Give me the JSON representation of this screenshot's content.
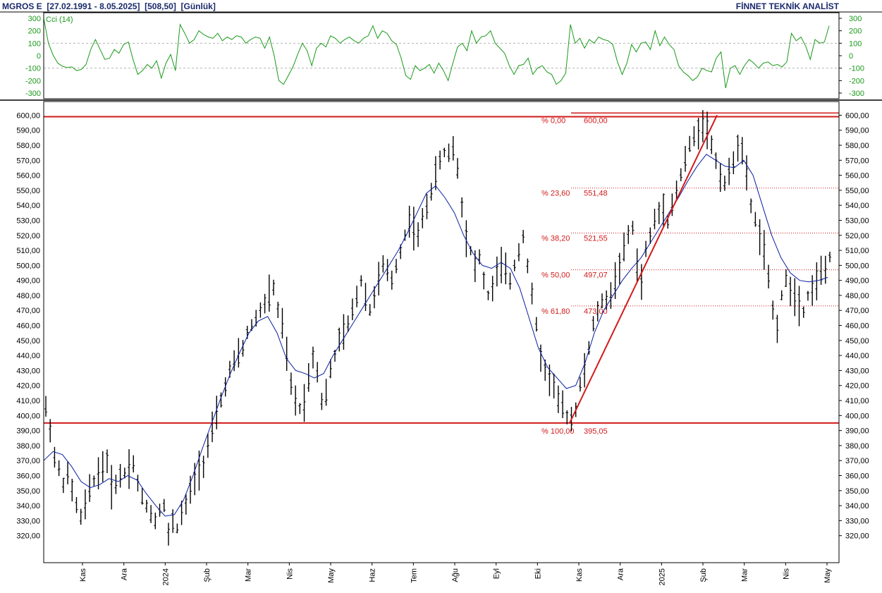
{
  "header": {
    "symbol": "MGROS E",
    "range": "[27.02.1991 - 8.05.2025]",
    "last": "[508,50]",
    "period": "[Günlük]",
    "right_title": "FİNNET TEKNİK ANALİST"
  },
  "colors": {
    "bars": "#000000",
    "moving_average": "#0a1fa0",
    "cci": "#1a9a1a",
    "fib_levels": "#d21a1a",
    "header_text": "#1a2a6c"
  },
  "chart_data": [
    {
      "type": "line",
      "title": "Cci (14)",
      "ylim": [
        -300,
        300
      ],
      "yticks": [
        "300",
        "200",
        "100",
        "0",
        "-100",
        "-200",
        "-300"
      ],
      "grid": true,
      "series": [
        {
          "name": "Cci (14)",
          "values": [
            300,
            100,
            5,
            -60,
            -85,
            -95,
            -90,
            -120,
            -110,
            -70,
            50,
            130,
            50,
            -30,
            -20,
            50,
            20,
            90,
            110,
            -30,
            -150,
            -120,
            -70,
            -100,
            -40,
            -180,
            -60,
            10,
            -120,
            250,
            180,
            100,
            130,
            200,
            170,
            150,
            140,
            180,
            120,
            150,
            130,
            160,
            150,
            100,
            130,
            150,
            140,
            60,
            150,
            0,
            -200,
            -230,
            -160,
            -90,
            10,
            100,
            40,
            -80,
            60,
            100,
            70,
            160,
            140,
            100,
            130,
            150,
            120,
            100,
            140,
            160,
            240,
            140,
            200,
            180,
            120,
            90,
            -20,
            -160,
            -190,
            -80,
            -120,
            -100,
            -70,
            -140,
            -60,
            -120,
            -200,
            -60,
            70,
            100,
            40,
            200,
            100,
            150,
            160,
            200,
            100,
            60,
            20,
            -80,
            -150,
            -80,
            -70,
            -20,
            -150,
            -100,
            -80,
            -130,
            -150,
            -230,
            -200,
            -140,
            250,
            100,
            140,
            60,
            130,
            100,
            150,
            130,
            120,
            90,
            -50,
            -150,
            -60,
            90,
            30,
            100,
            110,
            50,
            200,
            80,
            150,
            90,
            50,
            -80,
            -130,
            -160,
            -200,
            -170,
            -100,
            -120,
            -130,
            -20,
            30,
            -260,
            -100,
            -80,
            -150,
            -80,
            -30,
            -60,
            -100,
            -60,
            -50,
            -80,
            -70,
            -90,
            -50,
            180,
            120,
            150,
            80,
            -30,
            130,
            100,
            110,
            240
          ]
        }
      ]
    },
    {
      "type": "line",
      "subtype": "ohlc-bars-with-moving-average",
      "ylim": [
        310,
        603
      ],
      "yticks": [
        "600,00",
        "590,00",
        "580,00",
        "570,00",
        "560,00",
        "550,00",
        "540,00",
        "530,00",
        "520,00",
        "510,00",
        "500,00",
        "490,00",
        "480,00",
        "470,00",
        "460,00",
        "450,00",
        "440,00",
        "430,00",
        "420,00",
        "410,00",
        "400,00",
        "390,00",
        "380,00",
        "370,00",
        "360,00",
        "350,00",
        "340,00",
        "330,00",
        "320,00"
      ],
      "x_tick_labels": [
        "Kas",
        "Ara",
        "2024",
        "Şub",
        "Mar",
        "Nis",
        "May",
        "Haz",
        "Tem",
        "Ağu",
        "Eyl",
        "Eki",
        "Kas",
        "Ara",
        "2025",
        "Şub",
        "Mar",
        "Nis",
        "May"
      ],
      "grid": true,
      "series": [
        {
          "name": "Price",
          "values": [
            405,
            392,
            372,
            364,
            355,
            360,
            350,
            340,
            332,
            340,
            350,
            357,
            362,
            366,
            370,
            352,
            355,
            360,
            362,
            366,
            368,
            355,
            345,
            340,
            335,
            330,
            338,
            340,
            320,
            330,
            325,
            335,
            340,
            350,
            358,
            365,
            368,
            380,
            390,
            400,
            410,
            420,
            430,
            435,
            440,
            445,
            455,
            460,
            465,
            470,
            475,
            480,
            485,
            470,
            460,
            440,
            420,
            410,
            405,
            410,
            425,
            440,
            430,
            410,
            415,
            430,
            440,
            450,
            455,
            460,
            470,
            480,
            490,
            480,
            470,
            480,
            490,
            500,
            495,
            490,
            500,
            510,
            520,
            530,
            525,
            520,
            530,
            540,
            550,
            560,
            570,
            575,
            575,
            578,
            565,
            540,
            520,
            510,
            500,
            505,
            490,
            480,
            485,
            495,
            500,
            495,
            490,
            500,
            510,
            520,
            500,
            480,
            460,
            440,
            430,
            425,
            420,
            410,
            405,
            400,
            398,
            405,
            420,
            430,
            445,
            460,
            470,
            475,
            478,
            480,
            490,
            500,
            510,
            520,
            525,
            500,
            490,
            510,
            520,
            530,
            535,
            540,
            530,
            540,
            550,
            560,
            570,
            580,
            585,
            590,
            595,
            590,
            580,
            570,
            560,
            555,
            560,
            570,
            580,
            575,
            560,
            540,
            530,
            520,
            510,
            490,
            470,
            460,
            480,
            490,
            485,
            480,
            475,
            470,
            480,
            485,
            490,
            495,
            498,
            505
          ]
        },
        {
          "name": "Moving Average",
          "values": [
            370,
            376,
            374,
            366,
            356,
            352,
            354,
            358,
            356,
            360,
            357,
            348,
            340,
            333,
            334,
            344,
            360,
            378,
            395,
            412,
            428,
            442,
            455,
            463,
            466,
            455,
            438,
            430,
            428,
            425,
            428,
            440,
            450,
            460,
            470,
            480,
            490,
            500,
            510,
            522,
            535,
            548,
            553,
            545,
            535,
            520,
            508,
            500,
            498,
            502,
            498,
            485,
            465,
            445,
            432,
            425,
            418,
            420,
            435,
            455,
            470,
            480,
            490,
            498,
            505,
            515,
            525,
            535,
            545,
            556,
            566,
            574,
            570,
            566,
            565,
            570,
            560,
            540,
            520,
            505,
            495,
            490,
            489,
            490,
            492
          ]
        }
      ],
      "fibonacci": {
        "levels": [
          {
            "pct": "% 0,00",
            "value": "600,00",
            "y": 600
          },
          {
            "pct": "% 23,60",
            "value": "551,48",
            "y": 551.48
          },
          {
            "pct": "% 38,20",
            "value": "521,55",
            "y": 521.55
          },
          {
            "pct": "% 50,00",
            "value": "497,07",
            "y": 497.07
          },
          {
            "pct": "% 61,80",
            "value": "473,00",
            "y": 473.0
          },
          {
            "pct": "% 100,00",
            "value": "395,05",
            "y": 395.05
          }
        ],
        "support": 395.05,
        "resistance": 599
      }
    }
  ]
}
